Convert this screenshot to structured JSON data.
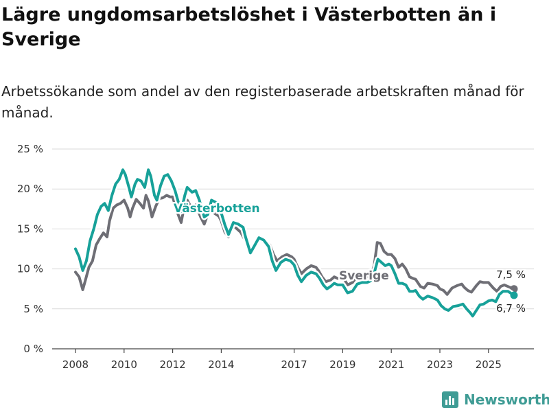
{
  "title": "Lägre ungdomsarbetslöshet i Västerbotten än i Sverige",
  "subtitle": "Arbetssökande som andel av den registerbaserade arbetskraften månad för månad.",
  "brand": {
    "name": "Newsworthy",
    "icon": "newsworthy-logo-icon"
  },
  "colors": {
    "vasterbotten": "#17a199",
    "sverige": "#6e6e75",
    "grid": "#d9d9d9"
  },
  "chart_data": {
    "type": "line",
    "title": "Lägre ungdomsarbetslöshet i Västerbotten än i Sverige",
    "xlabel": "",
    "ylabel": "",
    "xlim": [
      2007.6,
      2026.5
    ],
    "ylim": [
      0,
      25
    ],
    "yticks": [
      0,
      5,
      10,
      15,
      20,
      25
    ],
    "ytick_labels": [
      "0 %",
      "5 %",
      "10 %",
      "15 %",
      "20 %",
      "25 %"
    ],
    "xticks": [
      2008,
      2010,
      2012,
      2014,
      2017,
      2019,
      2021,
      2023,
      2025
    ],
    "xtick_labels": [
      "2008",
      "2010",
      "2012",
      "2014",
      "2017",
      "2019",
      "2021",
      "2023",
      "2025"
    ],
    "grid": true,
    "series": [
      {
        "name": "Sverige",
        "label": "Sverige",
        "end_label": "7,5 %",
        "points": [
          [
            2008.0,
            9.6
          ],
          [
            2008.15,
            9.0
          ],
          [
            2008.3,
            7.4
          ],
          [
            2008.4,
            8.5
          ],
          [
            2008.55,
            10.2
          ],
          [
            2008.7,
            11.0
          ],
          [
            2008.85,
            13.0
          ],
          [
            2009.0,
            13.8
          ],
          [
            2009.15,
            14.5
          ],
          [
            2009.3,
            14.0
          ],
          [
            2009.4,
            16.0
          ],
          [
            2009.55,
            17.6
          ],
          [
            2009.7,
            18.0
          ],
          [
            2009.85,
            18.2
          ],
          [
            2010.0,
            18.6
          ],
          [
            2010.15,
            17.6
          ],
          [
            2010.25,
            16.5
          ],
          [
            2010.35,
            17.6
          ],
          [
            2010.5,
            18.7
          ],
          [
            2010.65,
            18.2
          ],
          [
            2010.8,
            17.6
          ],
          [
            2010.9,
            19.2
          ],
          [
            2011.0,
            18.5
          ],
          [
            2011.15,
            16.5
          ],
          [
            2011.3,
            17.8
          ],
          [
            2011.45,
            18.8
          ],
          [
            2011.6,
            18.9
          ],
          [
            2011.75,
            19.2
          ],
          [
            2011.9,
            19.0
          ],
          [
            2012.0,
            19.0
          ],
          [
            2012.2,
            17.0
          ],
          [
            2012.35,
            15.8
          ],
          [
            2012.5,
            18.2
          ],
          [
            2012.6,
            18.6
          ],
          [
            2012.8,
            17.5
          ],
          [
            2012.95,
            18.0
          ],
          [
            2013.15,
            16.5
          ],
          [
            2013.3,
            15.6
          ],
          [
            2013.5,
            17.3
          ],
          [
            2013.7,
            17.0
          ],
          [
            2013.9,
            16.6
          ],
          [
            2014.0,
            16.0
          ],
          [
            2014.15,
            14.6
          ],
          [
            2014.3,
            14.0
          ],
          [
            2014.5,
            15.4
          ],
          [
            2014.65,
            15.0
          ],
          [
            2014.8,
            14.6
          ],
          [
            2015.0,
            13.5
          ],
          [
            2015.2,
            12.5
          ],
          [
            2015.4,
            13.2
          ],
          [
            2015.6,
            13.8
          ],
          [
            2015.8,
            13.2
          ],
          [
            2016.0,
            13.0
          ],
          [
            2016.15,
            11.8
          ],
          [
            2016.3,
            11.0
          ],
          [
            2016.5,
            11.5
          ],
          [
            2016.7,
            11.8
          ],
          [
            2016.9,
            11.5
          ],
          [
            2017.0,
            11.2
          ],
          [
            2017.15,
            10.2
          ],
          [
            2017.3,
            9.4
          ],
          [
            2017.5,
            10.0
          ],
          [
            2017.7,
            10.4
          ],
          [
            2017.9,
            10.2
          ],
          [
            2018.0,
            9.8
          ],
          [
            2018.15,
            9.0
          ],
          [
            2018.3,
            8.4
          ],
          [
            2018.5,
            8.6
          ],
          [
            2018.65,
            9.0
          ],
          [
            2018.8,
            8.8
          ],
          [
            2019.0,
            9.0
          ],
          [
            2019.2,
            8.0
          ],
          [
            2019.4,
            8.3
          ],
          [
            2019.6,
            9.1
          ],
          [
            2019.8,
            9.3
          ],
          [
            2020.0,
            9.0
          ],
          [
            2020.2,
            9.5
          ],
          [
            2020.3,
            10.5
          ],
          [
            2020.42,
            13.3
          ],
          [
            2020.55,
            13.2
          ],
          [
            2020.7,
            12.2
          ],
          [
            2020.85,
            11.8
          ],
          [
            2021.0,
            11.8
          ],
          [
            2021.15,
            11.3
          ],
          [
            2021.3,
            10.2
          ],
          [
            2021.45,
            10.6
          ],
          [
            2021.6,
            10.0
          ],
          [
            2021.75,
            9.0
          ],
          [
            2021.9,
            8.8
          ],
          [
            2022.0,
            8.7
          ],
          [
            2022.2,
            7.8
          ],
          [
            2022.35,
            7.6
          ],
          [
            2022.5,
            8.2
          ],
          [
            2022.7,
            8.1
          ],
          [
            2022.9,
            7.9
          ],
          [
            2023.0,
            7.5
          ],
          [
            2023.15,
            7.3
          ],
          [
            2023.3,
            6.8
          ],
          [
            2023.5,
            7.6
          ],
          [
            2023.7,
            7.9
          ],
          [
            2023.9,
            8.1
          ],
          [
            2024.0,
            7.7
          ],
          [
            2024.15,
            7.3
          ],
          [
            2024.3,
            7.1
          ],
          [
            2024.5,
            7.9
          ],
          [
            2024.65,
            8.4
          ],
          [
            2024.8,
            8.3
          ],
          [
            2025.0,
            8.3
          ],
          [
            2025.2,
            7.6
          ],
          [
            2025.35,
            7.2
          ],
          [
            2025.5,
            7.8
          ],
          [
            2025.65,
            8.0
          ],
          [
            2025.8,
            7.8
          ],
          [
            2025.95,
            7.6
          ],
          [
            2026.05,
            7.5
          ]
        ]
      },
      {
        "name": "Västerbotten",
        "label": "Västerbotten",
        "end_label": "6,7 %",
        "points": [
          [
            2008.0,
            12.5
          ],
          [
            2008.15,
            11.5
          ],
          [
            2008.3,
            9.8
          ],
          [
            2008.45,
            11.0
          ],
          [
            2008.6,
            13.5
          ],
          [
            2008.75,
            15.0
          ],
          [
            2008.9,
            16.8
          ],
          [
            2009.05,
            17.8
          ],
          [
            2009.2,
            18.2
          ],
          [
            2009.35,
            17.3
          ],
          [
            2009.5,
            19.2
          ],
          [
            2009.65,
            20.6
          ],
          [
            2009.8,
            21.2
          ],
          [
            2009.95,
            22.4
          ],
          [
            2010.05,
            21.8
          ],
          [
            2010.2,
            20.2
          ],
          [
            2010.3,
            19.0
          ],
          [
            2010.45,
            20.6
          ],
          [
            2010.55,
            21.2
          ],
          [
            2010.7,
            21.0
          ],
          [
            2010.85,
            20.2
          ],
          [
            2011.0,
            22.4
          ],
          [
            2011.1,
            21.6
          ],
          [
            2011.25,
            19.2
          ],
          [
            2011.35,
            18.6
          ],
          [
            2011.5,
            20.4
          ],
          [
            2011.65,
            21.6
          ],
          [
            2011.8,
            21.8
          ],
          [
            2011.95,
            21.0
          ],
          [
            2012.1,
            19.8
          ],
          [
            2012.25,
            18.2
          ],
          [
            2012.35,
            17.2
          ],
          [
            2012.5,
            19.2
          ],
          [
            2012.6,
            20.2
          ],
          [
            2012.8,
            19.6
          ],
          [
            2012.95,
            19.8
          ],
          [
            2013.1,
            18.6
          ],
          [
            2013.3,
            16.5
          ],
          [
            2013.45,
            16.8
          ],
          [
            2013.6,
            18.6
          ],
          [
            2013.8,
            18.3
          ],
          [
            2014.0,
            17.0
          ],
          [
            2014.15,
            15.5
          ],
          [
            2014.3,
            14.3
          ],
          [
            2014.5,
            15.8
          ],
          [
            2014.7,
            15.6
          ],
          [
            2014.9,
            15.2
          ],
          [
            2015.0,
            14.0
          ],
          [
            2015.2,
            12.0
          ],
          [
            2015.35,
            12.8
          ],
          [
            2015.55,
            13.9
          ],
          [
            2015.75,
            13.6
          ],
          [
            2015.95,
            12.8
          ],
          [
            2016.1,
            11.0
          ],
          [
            2016.25,
            9.8
          ],
          [
            2016.45,
            10.8
          ],
          [
            2016.65,
            11.2
          ],
          [
            2016.85,
            11.0
          ],
          [
            2017.0,
            10.5
          ],
          [
            2017.15,
            9.2
          ],
          [
            2017.3,
            8.4
          ],
          [
            2017.5,
            9.2
          ],
          [
            2017.7,
            9.6
          ],
          [
            2017.9,
            9.4
          ],
          [
            2018.05,
            8.8
          ],
          [
            2018.2,
            8.0
          ],
          [
            2018.35,
            7.5
          ],
          [
            2018.5,
            7.8
          ],
          [
            2018.65,
            8.2
          ],
          [
            2018.8,
            8.0
          ],
          [
            2019.0,
            8.0
          ],
          [
            2019.2,
            7.0
          ],
          [
            2019.4,
            7.2
          ],
          [
            2019.6,
            8.1
          ],
          [
            2019.8,
            8.3
          ],
          [
            2020.0,
            8.3
          ],
          [
            2020.15,
            8.5
          ],
          [
            2020.3,
            9.5
          ],
          [
            2020.45,
            11.2
          ],
          [
            2020.6,
            10.8
          ],
          [
            2020.75,
            10.4
          ],
          [
            2020.9,
            10.6
          ],
          [
            2021.0,
            10.4
          ],
          [
            2021.15,
            9.4
          ],
          [
            2021.3,
            8.2
          ],
          [
            2021.45,
            8.2
          ],
          [
            2021.6,
            8.0
          ],
          [
            2021.75,
            7.2
          ],
          [
            2021.9,
            7.2
          ],
          [
            2022.0,
            7.3
          ],
          [
            2022.15,
            6.6
          ],
          [
            2022.3,
            6.2
          ],
          [
            2022.5,
            6.6
          ],
          [
            2022.7,
            6.4
          ],
          [
            2022.9,
            6.1
          ],
          [
            2023.05,
            5.4
          ],
          [
            2023.2,
            5.0
          ],
          [
            2023.35,
            4.8
          ],
          [
            2023.55,
            5.3
          ],
          [
            2023.75,
            5.4
          ],
          [
            2023.95,
            5.6
          ],
          [
            2024.1,
            5.0
          ],
          [
            2024.25,
            4.5
          ],
          [
            2024.35,
            4.1
          ],
          [
            2024.5,
            4.8
          ],
          [
            2024.65,
            5.5
          ],
          [
            2024.8,
            5.6
          ],
          [
            2025.0,
            6.0
          ],
          [
            2025.15,
            6.1
          ],
          [
            2025.3,
            5.9
          ],
          [
            2025.45,
            6.8
          ],
          [
            2025.6,
            7.2
          ],
          [
            2025.8,
            7.2
          ],
          [
            2025.95,
            6.9
          ],
          [
            2026.05,
            6.7
          ]
        ]
      }
    ]
  }
}
